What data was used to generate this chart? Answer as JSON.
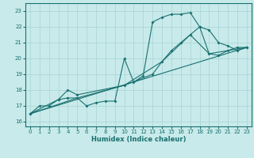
{
  "xlabel": "Humidex (Indice chaleur)",
  "bg_color": "#c8eaea",
  "line_color": "#1a7070",
  "grid_color": "#a8d4d4",
  "xlim": [
    -0.5,
    23.5
  ],
  "ylim": [
    15.7,
    23.5
  ],
  "yticks": [
    16,
    17,
    18,
    19,
    20,
    21,
    22,
    23
  ],
  "xticks": [
    0,
    1,
    2,
    3,
    4,
    5,
    6,
    7,
    8,
    9,
    10,
    11,
    12,
    13,
    14,
    15,
    16,
    17,
    18,
    19,
    20,
    21,
    22,
    23
  ],
  "series": [
    {
      "x": [
        0,
        1,
        2,
        3,
        4,
        5,
        6,
        7,
        8,
        9,
        10,
        11,
        12,
        13,
        14,
        15,
        16,
        17,
        18,
        19,
        20,
        21,
        22,
        23
      ],
      "y": [
        16.5,
        17.0,
        17.0,
        17.4,
        17.5,
        17.5,
        17.0,
        17.2,
        17.3,
        17.3,
        20.0,
        18.5,
        18.9,
        22.3,
        22.6,
        22.8,
        22.8,
        22.9,
        22.0,
        20.3,
        20.2,
        20.5,
        20.7,
        20.7
      ],
      "has_markers": true
    },
    {
      "x": [
        0,
        3,
        4,
        5,
        10,
        13,
        14,
        15,
        16,
        17,
        18,
        19,
        20,
        21,
        22,
        23
      ],
      "y": [
        16.5,
        17.4,
        18.0,
        17.7,
        18.3,
        19.0,
        19.8,
        20.5,
        21.0,
        21.5,
        22.0,
        21.8,
        21.0,
        20.8,
        20.5,
        20.7
      ],
      "has_markers": true
    },
    {
      "x": [
        0,
        23
      ],
      "y": [
        16.5,
        20.7
      ],
      "has_markers": false
    },
    {
      "x": [
        0,
        5,
        10,
        14,
        17,
        19,
        21,
        23
      ],
      "y": [
        16.5,
        17.5,
        18.3,
        19.8,
        21.5,
        20.3,
        20.5,
        20.7
      ],
      "has_markers": false
    }
  ]
}
